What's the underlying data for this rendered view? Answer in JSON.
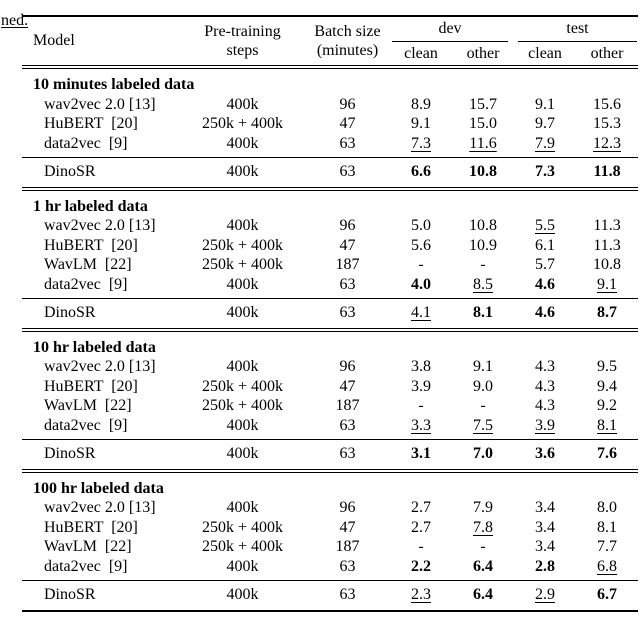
{
  "page": {
    "caption_fragment": "ned."
  },
  "table": {
    "header": {
      "model": "Model",
      "pretraining_line1": "Pre-training",
      "pretraining_line2": "steps",
      "batch_line1": "Batch size",
      "batch_line2": "(minutes)",
      "group_dev": "dev",
      "group_test": "test",
      "sub_dev_clean": "clean",
      "sub_dev_other": "other",
      "sub_test_clean": "clean",
      "sub_test_other": "other"
    },
    "sections": [
      {
        "title": "10 minutes labeled data",
        "rows": [
          {
            "model": "wav2vec 2.0 [13]",
            "steps": "400k",
            "batch": "96",
            "values": [
              {
                "v": "8.9",
                "style": "plain"
              },
              {
                "v": "15.7",
                "style": "plain"
              },
              {
                "v": "9.1",
                "style": "plain"
              },
              {
                "v": "15.6",
                "style": "plain"
              }
            ]
          },
          {
            "model": "HuBERT  [20]",
            "steps": "250k + 400k",
            "batch": "47",
            "values": [
              {
                "v": "9.1",
                "style": "plain"
              },
              {
                "v": "15.0",
                "style": "plain"
              },
              {
                "v": "9.7",
                "style": "plain"
              },
              {
                "v": "15.3",
                "style": "plain"
              }
            ]
          },
          {
            "model": "data2vec  [9]",
            "steps": "400k",
            "batch": "63",
            "values": [
              {
                "v": "7.3",
                "style": "underline"
              },
              {
                "v": "11.6",
                "style": "underline"
              },
              {
                "v": "7.9",
                "style": "underline"
              },
              {
                "v": "12.3",
                "style": "underline"
              }
            ]
          }
        ],
        "summary": {
          "model": "DinoSR",
          "steps": "400k",
          "batch": "63",
          "values": [
            {
              "v": "6.6",
              "style": "bold"
            },
            {
              "v": "10.8",
              "style": "bold"
            },
            {
              "v": "7.3",
              "style": "bold"
            },
            {
              "v": "11.8",
              "style": "bold"
            }
          ]
        }
      },
      {
        "title": "1 hr labeled data",
        "rows": [
          {
            "model": "wav2vec 2.0 [13]",
            "steps": "400k",
            "batch": "96",
            "values": [
              {
                "v": "5.0",
                "style": "plain"
              },
              {
                "v": "10.8",
                "style": "plain"
              },
              {
                "v": "5.5",
                "style": "underline"
              },
              {
                "v": "11.3",
                "style": "plain"
              }
            ]
          },
          {
            "model": "HuBERT  [20]",
            "steps": "250k + 400k",
            "batch": "47",
            "values": [
              {
                "v": "5.6",
                "style": "plain"
              },
              {
                "v": "10.9",
                "style": "plain"
              },
              {
                "v": "6.1",
                "style": "plain"
              },
              {
                "v": "11.3",
                "style": "plain"
              }
            ]
          },
          {
            "model": "WavLM  [22]",
            "steps": "250k + 400k",
            "batch": "187",
            "values": [
              {
                "v": "-",
                "style": "plain"
              },
              {
                "v": "-",
                "style": "plain"
              },
              {
                "v": "5.7",
                "style": "plain"
              },
              {
                "v": "10.8",
                "style": "plain"
              }
            ]
          },
          {
            "model": "data2vec  [9]",
            "steps": "400k",
            "batch": "63",
            "values": [
              {
                "v": "4.0",
                "style": "bold"
              },
              {
                "v": "8.5",
                "style": "underline"
              },
              {
                "v": "4.6",
                "style": "bold"
              },
              {
                "v": "9.1",
                "style": "underline"
              }
            ]
          }
        ],
        "summary": {
          "model": "DinoSR",
          "steps": "400k",
          "batch": "63",
          "values": [
            {
              "v": "4.1",
              "style": "underline"
            },
            {
              "v": "8.1",
              "style": "bold"
            },
            {
              "v": "4.6",
              "style": "bold"
            },
            {
              "v": "8.7",
              "style": "bold"
            }
          ]
        }
      },
      {
        "title": "10 hr labeled data",
        "rows": [
          {
            "model": "wav2vec 2.0 [13]",
            "steps": "400k",
            "batch": "96",
            "values": [
              {
                "v": "3.8",
                "style": "plain"
              },
              {
                "v": "9.1",
                "style": "plain"
              },
              {
                "v": "4.3",
                "style": "plain"
              },
              {
                "v": "9.5",
                "style": "plain"
              }
            ]
          },
          {
            "model": "HuBERT  [20]",
            "steps": "250k + 400k",
            "batch": "47",
            "values": [
              {
                "v": "3.9",
                "style": "plain"
              },
              {
                "v": "9.0",
                "style": "plain"
              },
              {
                "v": "4.3",
                "style": "plain"
              },
              {
                "v": "9.4",
                "style": "plain"
              }
            ]
          },
          {
            "model": "WavLM  [22]",
            "steps": "250k + 400k",
            "batch": "187",
            "values": [
              {
                "v": "-",
                "style": "plain"
              },
              {
                "v": "-",
                "style": "plain"
              },
              {
                "v": "4.3",
                "style": "plain"
              },
              {
                "v": "9.2",
                "style": "plain"
              }
            ]
          },
          {
            "model": "data2vec  [9]",
            "steps": "400k",
            "batch": "63",
            "values": [
              {
                "v": "3.3",
                "style": "underline"
              },
              {
                "v": "7.5",
                "style": "underline"
              },
              {
                "v": "3.9",
                "style": "underline"
              },
              {
                "v": "8.1",
                "style": "underline"
              }
            ]
          }
        ],
        "summary": {
          "model": "DinoSR",
          "steps": "400k",
          "batch": "63",
          "values": [
            {
              "v": "3.1",
              "style": "bold"
            },
            {
              "v": "7.0",
              "style": "bold"
            },
            {
              "v": "3.6",
              "style": "bold"
            },
            {
              "v": "7.6",
              "style": "bold"
            }
          ]
        }
      },
      {
        "title": "100 hr labeled data",
        "rows": [
          {
            "model": "wav2vec 2.0 [13]",
            "steps": "400k",
            "batch": "96",
            "values": [
              {
                "v": "2.7",
                "style": "plain"
              },
              {
                "v": "7.9",
                "style": "plain"
              },
              {
                "v": "3.4",
                "style": "plain"
              },
              {
                "v": "8.0",
                "style": "plain"
              }
            ]
          },
          {
            "model": "HuBERT  [20]",
            "steps": "250k + 400k",
            "batch": "47",
            "values": [
              {
                "v": "2.7",
                "style": "plain"
              },
              {
                "v": "7.8",
                "style": "underline"
              },
              {
                "v": "3.4",
                "style": "plain"
              },
              {
                "v": "8.1",
                "style": "plain"
              }
            ]
          },
          {
            "model": "WavLM  [22]",
            "steps": "250k + 400k",
            "batch": "187",
            "values": [
              {
                "v": "-",
                "style": "plain"
              },
              {
                "v": "-",
                "style": "plain"
              },
              {
                "v": "3.4",
                "style": "plain"
              },
              {
                "v": "7.7",
                "style": "plain"
              }
            ]
          },
          {
            "model": "data2vec  [9]",
            "steps": "400k",
            "batch": "63",
            "values": [
              {
                "v": "2.2",
                "style": "bold"
              },
              {
                "v": "6.4",
                "style": "bold"
              },
              {
                "v": "2.8",
                "style": "bold"
              },
              {
                "v": "6.8",
                "style": "underline"
              }
            ]
          }
        ],
        "summary": {
          "model": "DinoSR",
          "steps": "400k",
          "batch": "63",
          "values": [
            {
              "v": "2.3",
              "style": "underline"
            },
            {
              "v": "6.4",
              "style": "bold"
            },
            {
              "v": "2.9",
              "style": "underline"
            },
            {
              "v": "6.7",
              "style": "bold"
            }
          ]
        }
      }
    ]
  }
}
